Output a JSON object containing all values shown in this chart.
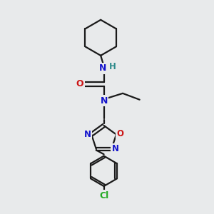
{
  "background_color": "#e8eaeb",
  "atom_colors": {
    "C": "#1a1a1a",
    "N": "#1414cc",
    "O": "#cc1414",
    "H": "#2e8b8b",
    "Cl": "#22aa22"
  },
  "bond_color": "#1a1a1a",
  "bond_width": 1.6,
  "dbo": 0.09,
  "figsize": [
    3.0,
    3.0
  ],
  "dpi": 100
}
